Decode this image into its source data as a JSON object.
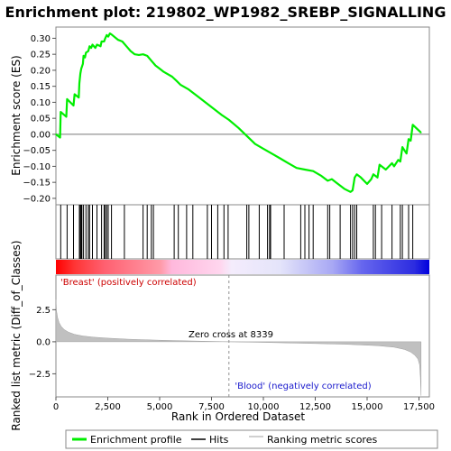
{
  "chart_data": {
    "type": "line",
    "title": "Enrichment plot: 219802_WP1982_SREBP_SIGNALLING",
    "enrichment_panel": {
      "ylabel": "Enrichment score (ES)",
      "ylim": [
        -0.22,
        0.335
      ],
      "yticks": [
        "0.30",
        "0.25",
        "0.20",
        "0.15",
        "0.10",
        "0.05",
        "0.00",
        "−0.05",
        "−0.10",
        "−0.15",
        "−0.20"
      ],
      "ytick_values": [
        0.3,
        0.25,
        0.2,
        0.15,
        0.1,
        0.05,
        0.0,
        -0.05,
        -0.1,
        -0.15,
        -0.2
      ],
      "line_color": "#00ee00",
      "series": [
        {
          "name": "Enrichment profile",
          "x": [
            0,
            200,
            230,
            500,
            540,
            850,
            900,
            1100,
            1130,
            1180,
            1220,
            1300,
            1330,
            1400,
            1450,
            1560,
            1620,
            1700,
            1760,
            1900,
            1980,
            2150,
            2200,
            2320,
            2380,
            2450,
            2520,
            2600,
            2680,
            2900,
            3000,
            3200,
            3400,
            3600,
            3800,
            4000,
            4200,
            4400,
            4600,
            4800,
            5000,
            5200,
            5600,
            5800,
            6000,
            6400,
            6800,
            7200,
            7600,
            8000,
            8339,
            8800,
            9200,
            9600,
            10000,
            10400,
            10800,
            11200,
            11600,
            12000,
            12400,
            12800,
            13100,
            13300,
            13500,
            13700,
            13900,
            14200,
            14300,
            14400,
            14500,
            14700,
            15000,
            15200,
            15300,
            15500,
            15600,
            15900,
            16200,
            16300,
            16500,
            16600,
            16700,
            16900,
            17000,
            17100,
            17200,
            17600
          ],
          "y": [
            0.0,
            -0.01,
            0.07,
            0.055,
            0.11,
            0.09,
            0.125,
            0.115,
            0.16,
            0.19,
            0.205,
            0.22,
            0.245,
            0.24,
            0.255,
            0.26,
            0.275,
            0.27,
            0.28,
            0.27,
            0.28,
            0.275,
            0.29,
            0.29,
            0.3,
            0.31,
            0.305,
            0.315,
            0.312,
            0.3,
            0.295,
            0.29,
            0.275,
            0.26,
            0.25,
            0.248,
            0.25,
            0.245,
            0.23,
            0.215,
            0.205,
            0.195,
            0.18,
            0.168,
            0.155,
            0.14,
            0.12,
            0.1,
            0.08,
            0.06,
            0.045,
            0.02,
            -0.005,
            -0.03,
            -0.045,
            -0.06,
            -0.075,
            -0.09,
            -0.105,
            -0.11,
            -0.115,
            -0.13,
            -0.145,
            -0.14,
            -0.15,
            -0.16,
            -0.17,
            -0.18,
            -0.175,
            -0.135,
            -0.125,
            -0.135,
            -0.155,
            -0.14,
            -0.125,
            -0.135,
            -0.095,
            -0.11,
            -0.09,
            -0.1,
            -0.08,
            -0.085,
            -0.04,
            -0.06,
            -0.015,
            -0.02,
            0.03,
            0.005
          ]
        }
      ]
    },
    "hits_panel": {
      "hit_positions": [
        230,
        540,
        850,
        1130,
        1180,
        1220,
        1250,
        1330,
        1450,
        1560,
        1620,
        1760,
        1980,
        2200,
        2320,
        2380,
        2450,
        2520,
        2680,
        3300,
        4200,
        4400,
        4600,
        4700,
        5700,
        5900,
        6300,
        6600,
        7300,
        7500,
        7800,
        8100,
        8300,
        9200,
        9300,
        9800,
        10200,
        10300,
        10350,
        11000,
        11800,
        12000,
        12200,
        12400,
        13100,
        13200,
        13700,
        14200,
        14300,
        14400,
        14500,
        15300,
        15400,
        15700,
        16200,
        16600,
        16700,
        17000,
        17200
      ]
    },
    "metric_panel": {
      "ylabel": "Ranked list metric (Diff_of_Classes)",
      "ylim": [
        -4.3,
        5.2
      ],
      "yticks": [
        "2.5",
        "0.0",
        "−2.5"
      ],
      "ytick_values": [
        2.5,
        0.0,
        -2.5
      ],
      "xlabel": "Rank in Ordered Dataset",
      "xticks": [
        "0",
        "2,500",
        "5,000",
        "7,500",
        "10,000",
        "12,500",
        "15,000",
        "17,500"
      ],
      "xtick_values": [
        0,
        2500,
        5000,
        7500,
        10000,
        12500,
        15000,
        17500
      ],
      "xlim": [
        0,
        18000
      ],
      "n_genes": 17600,
      "zero_cross": 8339,
      "zero_cross_label": "Zero cross at 8339",
      "positive_label": "'Breast' (positively correlated)",
      "negative_label": "'Blood' (negatively correlated)",
      "metric_curve": {
        "rank": [
          0,
          30,
          80,
          150,
          250,
          400,
          600,
          900,
          1300,
          1800,
          2500,
          3500,
          5000,
          6500,
          8339,
          10000,
          12000,
          14000,
          15500,
          16300,
          16800,
          17100,
          17300,
          17450,
          17530,
          17570,
          17600
        ],
        "value": [
          3.3,
          2.4,
          1.9,
          1.5,
          1.2,
          0.95,
          0.75,
          0.58,
          0.45,
          0.36,
          0.28,
          0.2,
          0.12,
          0.06,
          0.0,
          -0.05,
          -0.12,
          -0.2,
          -0.3,
          -0.42,
          -0.6,
          -0.8,
          -1.05,
          -1.35,
          -1.8,
          -2.8,
          -4.2
        ]
      }
    },
    "legend": {
      "placement": "bottom",
      "items": [
        {
          "label": "Enrichment profile",
          "color": "#00ee00",
          "style": "thick-line"
        },
        {
          "label": "Hits",
          "color": "#000000",
          "style": "line"
        },
        {
          "label": "Ranking metric scores",
          "color": "#c0c0c0",
          "style": "line"
        }
      ]
    }
  }
}
